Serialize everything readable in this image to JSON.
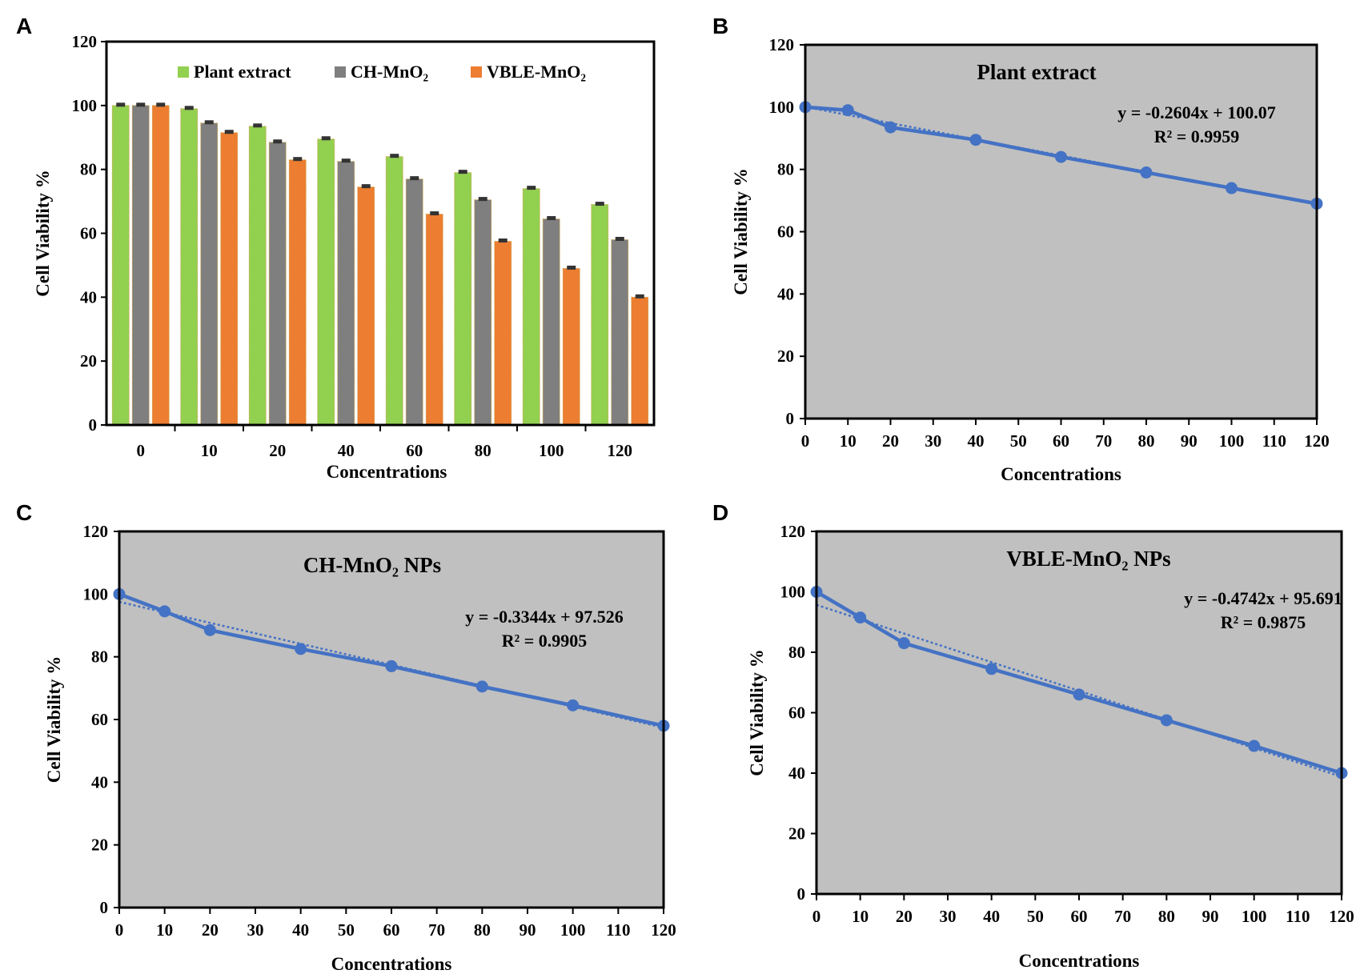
{
  "chart_data": [
    {
      "panel": "A",
      "type": "bar",
      "title": "",
      "xlabel": "Concentrations",
      "ylabel": "Cell Viability %",
      "categories": [
        "0",
        "10",
        "20",
        "40",
        "60",
        "80",
        "100",
        "120"
      ],
      "ylim": [
        0,
        120
      ],
      "yticks": [
        "0",
        "20",
        "40",
        "60",
        "80",
        "100",
        "120"
      ],
      "legend_position": "top",
      "series": [
        {
          "name": "Plant extract",
          "color": "#92d050",
          "values": [
            100,
            99,
            93.5,
            89.5,
            84,
            79,
            74,
            69
          ]
        },
        {
          "name": "CH-MnO₂",
          "color": "#7f7f7f",
          "values": [
            100,
            94.5,
            88.5,
            82.5,
            77,
            70.5,
            64.5,
            58
          ]
        },
        {
          "name": "VBLE-MnO₂",
          "color": "#ed7d31",
          "values": [
            100,
            91.5,
            83,
            74.5,
            66,
            57.5,
            49,
            40
          ]
        }
      ]
    },
    {
      "panel": "B",
      "type": "line",
      "title": "Plant extract",
      "xlabel": "Concentrations",
      "ylabel": "Cell Viability %",
      "x": [
        0,
        10,
        20,
        40,
        60,
        80,
        100,
        120
      ],
      "y": [
        100,
        99,
        93.5,
        89.5,
        84,
        79,
        74,
        69
      ],
      "xlim": [
        0,
        120
      ],
      "ylim": [
        0,
        120
      ],
      "xticks": [
        "0",
        "10",
        "20",
        "30",
        "40",
        "50",
        "60",
        "70",
        "80",
        "90",
        "100",
        "110",
        "120"
      ],
      "yticks": [
        "0",
        "20",
        "40",
        "60",
        "80",
        "100",
        "120"
      ],
      "trendline": {
        "slope": -0.2604,
        "intercept": 100.07
      },
      "equation": "y = -0.2604x + 100.07",
      "r_squared": "R² = 0.9959",
      "line_color": "#4472c4",
      "background": "#c0c0c0"
    },
    {
      "panel": "C",
      "type": "line",
      "title": "CH-MnO₂ NPs",
      "xlabel": "Concentrations",
      "ylabel": "Cell Viability %",
      "x": [
        0,
        10,
        20,
        40,
        60,
        80,
        100,
        120
      ],
      "y": [
        100,
        94.5,
        88.5,
        82.5,
        77,
        70.5,
        64.5,
        58
      ],
      "xlim": [
        0,
        120
      ],
      "ylim": [
        0,
        120
      ],
      "xticks": [
        "0",
        "10",
        "20",
        "30",
        "40",
        "50",
        "60",
        "70",
        "80",
        "90",
        "100",
        "110",
        "120"
      ],
      "yticks": [
        "0",
        "20",
        "40",
        "60",
        "80",
        "100",
        "120"
      ],
      "trendline": {
        "slope": -0.3344,
        "intercept": 97.526
      },
      "equation": "y = -0.3344x + 97.526",
      "r_squared": "R² = 0.9905",
      "line_color": "#4472c4",
      "background": "#c0c0c0"
    },
    {
      "panel": "D",
      "type": "line",
      "title": "VBLE-MnO₂ NPs",
      "xlabel": "Concentrations",
      "ylabel": "Cell Viability %",
      "x": [
        0,
        10,
        20,
        40,
        60,
        80,
        100,
        120
      ],
      "y": [
        100,
        91.5,
        83,
        74.5,
        66,
        57.5,
        49,
        40
      ],
      "xlim": [
        0,
        120
      ],
      "ylim": [
        0,
        120
      ],
      "xticks": [
        "0",
        "10",
        "20",
        "30",
        "40",
        "50",
        "60",
        "70",
        "80",
        "90",
        "100",
        "110",
        "120"
      ],
      "yticks": [
        "0",
        "20",
        "40",
        "60",
        "80",
        "100",
        "120"
      ],
      "trendline": {
        "slope": -0.4742,
        "intercept": 95.691
      },
      "equation": "y = -0.4742x + 95.691",
      "r_squared": "R² = 0.9875",
      "line_color": "#4472c4",
      "background": "#c0c0c0"
    }
  ]
}
